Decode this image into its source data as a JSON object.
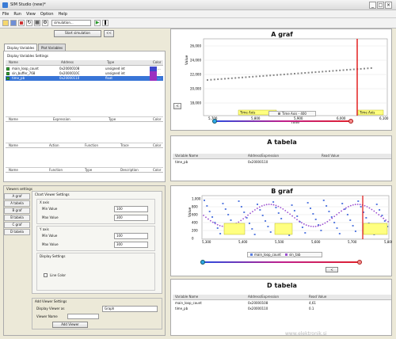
{
  "app": {
    "title": "SIM Studio (new)*"
  },
  "menu": [
    "File",
    "Run",
    "View",
    "Option",
    "Help"
  ],
  "toolbar": {
    "combo_value": "simulation..."
  },
  "left": {
    "remove_button": "Start simulation",
    "small_button": "<<",
    "tabs": [
      "Display Variables",
      "Plot Variables"
    ],
    "vars_group_title": "Display Variables Settings",
    "vars_headers": [
      "Name",
      "Address",
      "Type",
      "Color"
    ],
    "vars_rows": [
      {
        "name": "main_loop_count",
        "addr": "0x20000108",
        "type": "unsigned int",
        "selected": false,
        "color": "#3f48cc"
      },
      {
        "name": "sin_buffer_768",
        "addr": "0x2000010C",
        "type": "unsigned int",
        "selected": false,
        "color": "#9b30c0"
      },
      {
        "name": "time_pb",
        "addr": "0x20000110",
        "type": "float",
        "selected": true,
        "color": "#9b30c0"
      }
    ],
    "expr_headers": [
      "Name",
      "Expression",
      "Type",
      "Color"
    ],
    "action_headers": [
      "Name",
      "Action",
      "Function",
      "Trace",
      "Color"
    ],
    "func_headers": [
      "Name",
      "Function",
      "Type",
      "Description",
      "Color"
    ],
    "viewers_title": "Viewers settings",
    "viewer_tabs": [
      "A graf",
      "A tabela",
      "B graf",
      "B tabela",
      "C graf",
      "D tabela"
    ],
    "chart_settings": "Chart Viewer Settings",
    "x_axis": "X axis",
    "min_label": "Min Value",
    "max_label": "Max Value",
    "x_min": "100",
    "x_max": "300",
    "y_axis": "Y axis",
    "y_min": "100",
    "y_max": "300",
    "display_settings": "Display Settings",
    "checkbox_label": "Line Color",
    "add_group": "Add Viewer Settings",
    "display_viewer_as": "Display Viewer as",
    "viewer_type": "Graph",
    "viewer_name_label": "Viewer Name",
    "add_button": "Add Viewer"
  },
  "a_graf": {
    "title": "A graf",
    "ylabel": "Value",
    "xlabel": "Time",
    "yticks": [
      "26,000",
      "24,000",
      "22,000",
      "20,000",
      "18,000"
    ],
    "xticks": [
      "5,700",
      "5,800",
      "5,900",
      "6,000",
      "6,100"
    ],
    "annot_left": "Time Axis",
    "annot_right": "Time Axis",
    "legend": "Time Axis - 400",
    "scroll_button": "<"
  },
  "a_tabela": {
    "title": "A tabela",
    "headers": [
      "Variable Name",
      "Address/Expression",
      "Read Value"
    ],
    "rows": [
      [
        "time_pb",
        "0x20000110",
        ""
      ]
    ]
  },
  "b_graf": {
    "title": "B graf",
    "ylabel": "Value",
    "yticks": [
      "1,000",
      "800",
      "600",
      "400",
      "200",
      "0"
    ],
    "xticks": [
      "5,300",
      "5,400",
      "5,500",
      "5,600",
      "5,700",
      "5,800"
    ],
    "legend": [
      "main_loop_count",
      "sin_tab"
    ],
    "scroll_button": "<"
  },
  "d_tabela": {
    "title": "D tabela",
    "headers": [
      "Variable Name",
      "Address/Expression",
      "Read Value"
    ],
    "rows": [
      [
        "main_loop_count",
        "0x20000108",
        "4,61"
      ],
      [
        "time_pb",
        "0x20000110",
        "0.1"
      ]
    ]
  },
  "watermark": "www.elektronik.si"
}
